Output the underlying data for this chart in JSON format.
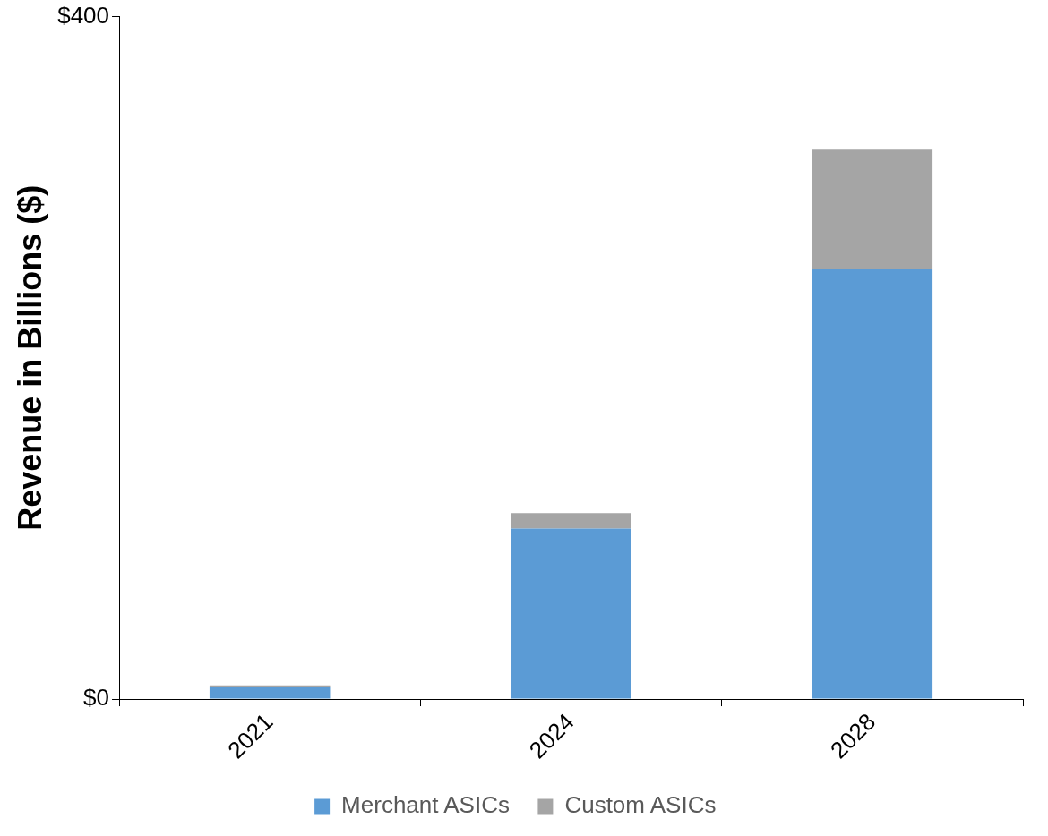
{
  "chart_data": {
    "type": "bar",
    "stacked": true,
    "ylabel": "Revenue in Billions ($)",
    "categories": [
      "2021",
      "2024",
      "2028"
    ],
    "series": [
      {
        "name": "Merchant ASICs",
        "color": "#5b9bd5",
        "values": [
          7,
          100,
          252
        ]
      },
      {
        "name": "Custom ASICs",
        "color": "#a5a5a5",
        "values": [
          1,
          9,
          70
        ]
      }
    ],
    "ylim": [
      0,
      400
    ],
    "yticks": [
      {
        "value": 0,
        "label": "$0"
      },
      {
        "value": 400,
        "label": "$400"
      }
    ],
    "legend": "bottom"
  }
}
